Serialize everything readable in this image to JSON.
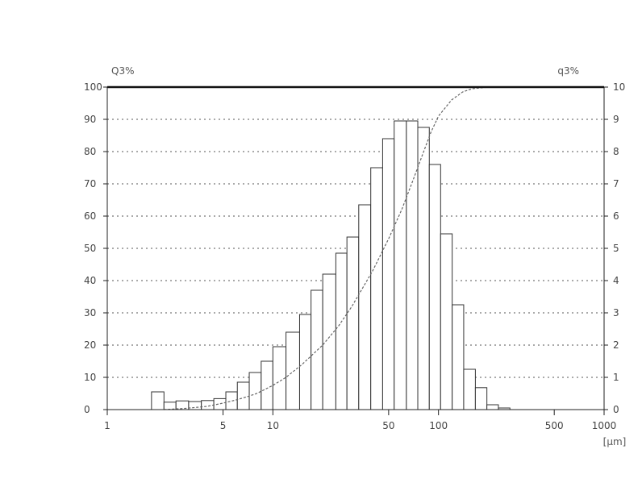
{
  "chart_data": {
    "type": "bar",
    "title": "",
    "left_axis_label": "Q3%",
    "right_axis_label": "q3%",
    "x_unit_label": "[µm]",
    "x_scale": "log",
    "xlim": [
      1,
      1000
    ],
    "ylim_left": [
      0,
      100
    ],
    "ylim_right": [
      0,
      10
    ],
    "grid": true,
    "x_tick_labels": [
      "1",
      "5",
      "10",
      "50",
      "100",
      "500",
      "1000"
    ],
    "x_tick_values": [
      1,
      5,
      10,
      50,
      100,
      500,
      1000
    ],
    "left_tick_labels": [
      "0",
      "10",
      "20",
      "30",
      "40",
      "50",
      "60",
      "70",
      "80",
      "90",
      "100"
    ],
    "right_tick_labels": [
      "0",
      "1",
      "2",
      "3",
      "4",
      "5",
      "6",
      "7",
      "8",
      "9",
      "10"
    ],
    "histogram_q3": [
      {
        "x0": 1.85,
        "x1": 2.2,
        "y": 0.55
      },
      {
        "x0": 2.2,
        "x1": 2.6,
        "y": 0.23
      },
      {
        "x0": 2.6,
        "x1": 3.1,
        "y": 0.27
      },
      {
        "x0": 3.1,
        "x1": 3.7,
        "y": 0.25
      },
      {
        "x0": 3.7,
        "x1": 4.4,
        "y": 0.28
      },
      {
        "x0": 4.4,
        "x1": 5.2,
        "y": 0.34
      },
      {
        "x0": 5.2,
        "x1": 6.1,
        "y": 0.55
      },
      {
        "x0": 6.1,
        "x1": 7.2,
        "y": 0.85
      },
      {
        "x0": 7.2,
        "x1": 8.5,
        "y": 1.15
      },
      {
        "x0": 8.5,
        "x1": 10,
        "y": 1.5
      },
      {
        "x0": 10,
        "x1": 12,
        "y": 1.95
      },
      {
        "x0": 12,
        "x1": 14.5,
        "y": 2.4
      },
      {
        "x0": 14.5,
        "x1": 17,
        "y": 2.95
      },
      {
        "x0": 17,
        "x1": 20,
        "y": 3.7
      },
      {
        "x0": 20,
        "x1": 24,
        "y": 4.2
      },
      {
        "x0": 24,
        "x1": 28,
        "y": 4.85
      },
      {
        "x0": 28,
        "x1": 33,
        "y": 5.35
      },
      {
        "x0": 33,
        "x1": 39,
        "y": 6.35
      },
      {
        "x0": 39,
        "x1": 46,
        "y": 7.5
      },
      {
        "x0": 46,
        "x1": 54,
        "y": 8.4
      },
      {
        "x0": 54,
        "x1": 64,
        "y": 8.95
      },
      {
        "x0": 64,
        "x1": 75,
        "y": 8.95
      },
      {
        "x0": 75,
        "x1": 88,
        "y": 8.75
      },
      {
        "x0": 88,
        "x1": 103,
        "y": 7.6
      },
      {
        "x0": 103,
        "x1": 121,
        "y": 5.45
      },
      {
        "x0": 121,
        "x1": 142,
        "y": 3.25
      },
      {
        "x0": 142,
        "x1": 167,
        "y": 1.25
      },
      {
        "x0": 167,
        "x1": 196,
        "y": 0.68
      },
      {
        "x0": 196,
        "x1": 230,
        "y": 0.15
      },
      {
        "x0": 230,
        "x1": 270,
        "y": 0.05
      }
    ],
    "cumulative_Q3": {
      "x": [
        2.2,
        3,
        4,
        5,
        6,
        7,
        8,
        10,
        12,
        15,
        20,
        25,
        30,
        40,
        50,
        60,
        70,
        80,
        90,
        100,
        120,
        140,
        160,
        200,
        300
      ],
      "y": [
        0,
        0.4,
        1,
        2,
        3,
        4,
        5,
        7.5,
        10,
        14,
        20,
        26,
        32,
        43,
        53,
        62,
        71,
        79,
        86,
        91,
        96,
        98.5,
        99.5,
        100,
        100
      ]
    }
  }
}
